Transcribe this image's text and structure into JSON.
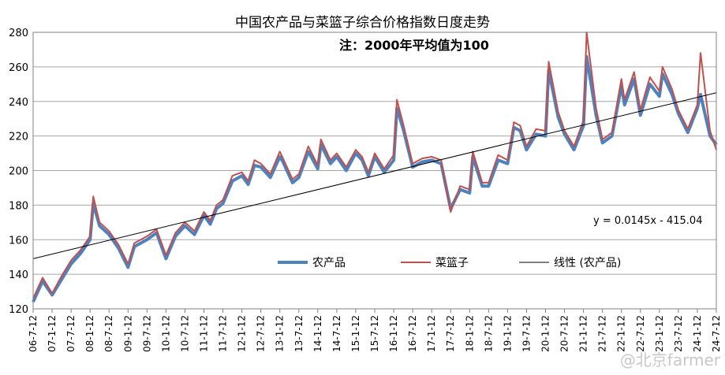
{
  "chart_data": {
    "type": "line",
    "title": "中国农产品与菜篮子综合价格指数日度走势",
    "subtitle": "注：2000年平均值为100",
    "ylim": [
      120,
      280
    ],
    "yticks": [
      120,
      140,
      160,
      180,
      200,
      220,
      240,
      260,
      280
    ],
    "grid": true,
    "legend_position": "bottom-center-inside",
    "x_tick_labels": [
      "06-7-12",
      "07-1-12",
      "07-7-12",
      "08-1-12",
      "08-7-12",
      "09-1-12",
      "09-7-12",
      "10-1-12",
      "10-7-12",
      "11-1-12",
      "11-7-12",
      "12-1-12",
      "12-7-12",
      "13-1-12",
      "13-7-12",
      "14-1-12",
      "14-7-12",
      "15-1-12",
      "15-7-12",
      "16-1-12",
      "16-7-12",
      "17-1-12",
      "17-7-12",
      "18-1-12",
      "18-7-12",
      "19-1-12",
      "19-7-12",
      "20-1-12",
      "20-7-12",
      "21-1-12",
      "21-7-12",
      "22-1-12",
      "22-7-12",
      "23-1-12",
      "23-7-12",
      "24-1-12",
      "24-7-12"
    ],
    "series": [
      {
        "name": "农产品",
        "color": "#4f81bd",
        "x": [
          "2006-07",
          "2006-10",
          "2007-01",
          "2007-04",
          "2007-07",
          "2007-10",
          "2008-01",
          "2008-02",
          "2008-04",
          "2008-07",
          "2008-10",
          "2009-01",
          "2009-03",
          "2009-07",
          "2009-10",
          "2010-01",
          "2010-04",
          "2010-07",
          "2010-10",
          "2011-01",
          "2011-03",
          "2011-05",
          "2011-07",
          "2011-10",
          "2012-01",
          "2012-03",
          "2012-05",
          "2012-07",
          "2012-10",
          "2013-01",
          "2013-02",
          "2013-05",
          "2013-07",
          "2013-10",
          "2014-01",
          "2014-02",
          "2014-05",
          "2014-07",
          "2014-10",
          "2015-01",
          "2015-03",
          "2015-05",
          "2015-07",
          "2015-10",
          "2016-01",
          "2016-02",
          "2016-04",
          "2016-07",
          "2016-10",
          "2017-01",
          "2017-04",
          "2017-07",
          "2017-10",
          "2018-01",
          "2018-02",
          "2018-05",
          "2018-07",
          "2018-10",
          "2019-01",
          "2019-03",
          "2019-05",
          "2019-07",
          "2019-10",
          "2020-01",
          "2020-02",
          "2020-05",
          "2020-07",
          "2020-10",
          "2021-01",
          "2021-02",
          "2021-05",
          "2021-07",
          "2021-10",
          "2022-01",
          "2022-02",
          "2022-05",
          "2022-07",
          "2022-10",
          "2023-01",
          "2023-02",
          "2023-05",
          "2023-07",
          "2023-10",
          "2024-01",
          "2024-02",
          "2024-05",
          "2024-07"
        ],
        "values": [
          124,
          136,
          128,
          137,
          146,
          152,
          160,
          181,
          168,
          163,
          155,
          144,
          156,
          160,
          164,
          149,
          162,
          168,
          163,
          174,
          169,
          178,
          181,
          194,
          197,
          192,
          203,
          202,
          196,
          208,
          205,
          193,
          196,
          211,
          201,
          215,
          204,
          208,
          200,
          210,
          206,
          197,
          208,
          199,
          206,
          236,
          224,
          202,
          205,
          206,
          204,
          178,
          189,
          187,
          208,
          191,
          191,
          206,
          204,
          225,
          223,
          212,
          221,
          220,
          258,
          231,
          221,
          212,
          226,
          266,
          232,
          216,
          220,
          249,
          238,
          253,
          232,
          250,
          243,
          256,
          244,
          233,
          222,
          236,
          244,
          220,
          215
        ]
      },
      {
        "name": "菜篮子",
        "color": "#c0504d",
        "x": [
          "2006-07",
          "2006-10",
          "2007-01",
          "2007-04",
          "2007-07",
          "2007-10",
          "2008-01",
          "2008-02",
          "2008-04",
          "2008-07",
          "2008-10",
          "2009-01",
          "2009-03",
          "2009-07",
          "2009-10",
          "2010-01",
          "2010-04",
          "2010-07",
          "2010-10",
          "2011-01",
          "2011-03",
          "2011-05",
          "2011-07",
          "2011-10",
          "2012-01",
          "2012-03",
          "2012-05",
          "2012-07",
          "2012-10",
          "2013-01",
          "2013-02",
          "2013-05",
          "2013-07",
          "2013-10",
          "2014-01",
          "2014-02",
          "2014-05",
          "2014-07",
          "2014-10",
          "2015-01",
          "2015-03",
          "2015-05",
          "2015-07",
          "2015-10",
          "2016-01",
          "2016-02",
          "2016-04",
          "2016-07",
          "2016-10",
          "2017-01",
          "2017-04",
          "2017-07",
          "2017-10",
          "2018-01",
          "2018-02",
          "2018-05",
          "2018-07",
          "2018-10",
          "2019-01",
          "2019-03",
          "2019-05",
          "2019-07",
          "2019-10",
          "2020-01",
          "2020-02",
          "2020-05",
          "2020-07",
          "2020-10",
          "2021-01",
          "2021-02",
          "2021-05",
          "2021-07",
          "2021-10",
          "2022-01",
          "2022-02",
          "2022-05",
          "2022-07",
          "2022-10",
          "2023-01",
          "2023-02",
          "2023-05",
          "2023-07",
          "2023-10",
          "2024-01",
          "2024-02",
          "2024-05",
          "2024-07"
        ],
        "values": [
          126,
          138,
          129,
          139,
          148,
          154,
          162,
          185,
          170,
          165,
          157,
          146,
          158,
          162,
          166,
          151,
          164,
          170,
          165,
          176,
          171,
          180,
          183,
          197,
          199,
          194,
          206,
          204,
          198,
          211,
          207,
          195,
          198,
          214,
          203,
          218,
          206,
          210,
          202,
          212,
          208,
          199,
          210,
          201,
          209,
          241,
          227,
          204,
          207,
          208,
          206,
          176,
          191,
          189,
          211,
          193,
          193,
          209,
          206,
          228,
          226,
          214,
          224,
          223,
          263,
          234,
          223,
          214,
          229,
          280,
          236,
          218,
          222,
          253,
          241,
          257,
          235,
          254,
          246,
          260,
          247,
          235,
          224,
          238,
          268,
          223,
          212
        ]
      }
    ],
    "trendline": {
      "name": "线性 (农产品)",
      "equation_label": "y = 0.0145x - 415.04",
      "color": "#000000",
      "start": {
        "x": "2006-07",
        "y": 149
      },
      "end": {
        "x": "2024-07",
        "y": 245
      }
    },
    "legend_labels": [
      "农产品",
      "菜篮子",
      "线性 (农产品)"
    ]
  },
  "watermark": "@北京farmer"
}
